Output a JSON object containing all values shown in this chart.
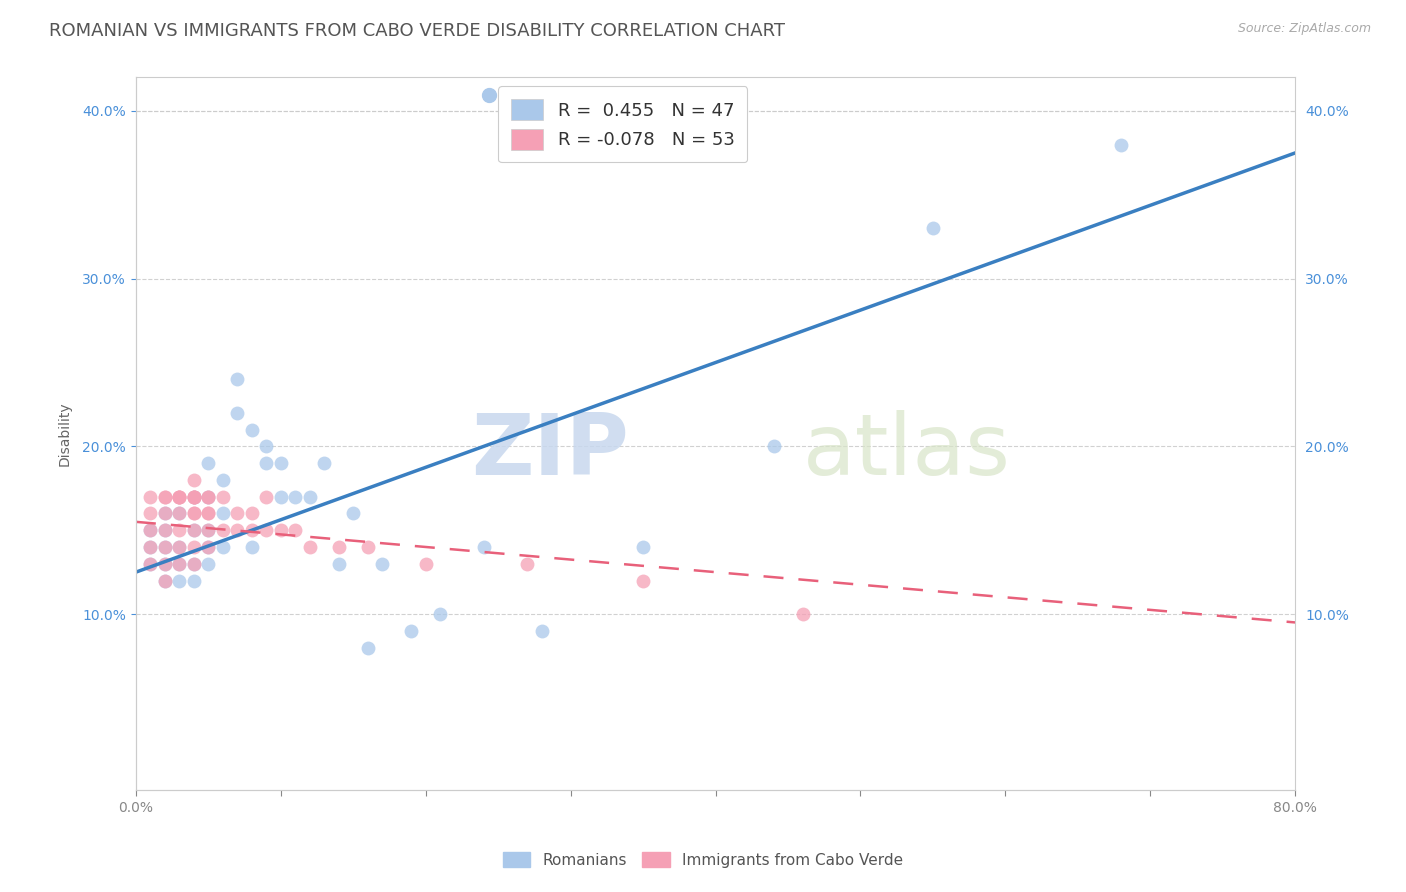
{
  "title": "ROMANIAN VS IMMIGRANTS FROM CABO VERDE DISABILITY CORRELATION CHART",
  "source_text": "Source: ZipAtlas.com",
  "ylabel": "Disability",
  "xlim": [
    0.0,
    0.8
  ],
  "ylim": [
    -0.005,
    0.42
  ],
  "x_ticks": [
    0.0,
    0.1,
    0.2,
    0.3,
    0.4,
    0.5,
    0.6,
    0.7,
    0.8
  ],
  "y_ticks": [
    0.1,
    0.2,
    0.3,
    0.4
  ],
  "y_tick_labels": [
    "10.0%",
    "20.0%",
    "30.0%",
    "40.0%"
  ],
  "legend_r_romanian": " 0.455",
  "legend_n_romanian": "47",
  "legend_r_caboverde": "-0.078",
  "legend_n_caboverde": "53",
  "romanian_color": "#aac8ea",
  "romanian_line_color": "#3a7fc1",
  "caboverde_color": "#f5a0b5",
  "caboverde_line_color": "#e8607a",
  "watermark_zip": "ZIP",
  "watermark_atlas": "atlas",
  "background_color": "#ffffff",
  "grid_color": "#cccccc",
  "romanian_x": [
    0.01,
    0.01,
    0.01,
    0.02,
    0.02,
    0.02,
    0.02,
    0.02,
    0.03,
    0.03,
    0.03,
    0.03,
    0.04,
    0.04,
    0.04,
    0.04,
    0.05,
    0.05,
    0.05,
    0.05,
    0.05,
    0.06,
    0.06,
    0.06,
    0.07,
    0.07,
    0.08,
    0.08,
    0.09,
    0.09,
    0.1,
    0.1,
    0.11,
    0.12,
    0.13,
    0.14,
    0.15,
    0.16,
    0.17,
    0.19,
    0.21,
    0.24,
    0.28,
    0.35,
    0.44,
    0.55,
    0.68
  ],
  "romanian_y": [
    0.13,
    0.14,
    0.15,
    0.12,
    0.13,
    0.14,
    0.15,
    0.16,
    0.12,
    0.13,
    0.14,
    0.16,
    0.12,
    0.13,
    0.15,
    0.17,
    0.13,
    0.14,
    0.15,
    0.17,
    0.19,
    0.14,
    0.16,
    0.18,
    0.22,
    0.24,
    0.14,
    0.21,
    0.19,
    0.2,
    0.17,
    0.19,
    0.17,
    0.17,
    0.19,
    0.13,
    0.16,
    0.08,
    0.13,
    0.09,
    0.1,
    0.14,
    0.09,
    0.14,
    0.2,
    0.33,
    0.38
  ],
  "caboverde_x": [
    0.01,
    0.01,
    0.01,
    0.01,
    0.01,
    0.02,
    0.02,
    0.02,
    0.02,
    0.02,
    0.02,
    0.02,
    0.03,
    0.03,
    0.03,
    0.03,
    0.03,
    0.03,
    0.03,
    0.03,
    0.04,
    0.04,
    0.04,
    0.04,
    0.04,
    0.04,
    0.04,
    0.04,
    0.04,
    0.04,
    0.05,
    0.05,
    0.05,
    0.05,
    0.05,
    0.05,
    0.06,
    0.06,
    0.07,
    0.07,
    0.08,
    0.08,
    0.09,
    0.09,
    0.1,
    0.11,
    0.12,
    0.14,
    0.16,
    0.2,
    0.27,
    0.35,
    0.46
  ],
  "caboverde_y": [
    0.13,
    0.14,
    0.15,
    0.16,
    0.17,
    0.12,
    0.13,
    0.14,
    0.15,
    0.16,
    0.17,
    0.17,
    0.13,
    0.14,
    0.15,
    0.16,
    0.17,
    0.17,
    0.17,
    0.17,
    0.13,
    0.14,
    0.15,
    0.16,
    0.16,
    0.17,
    0.17,
    0.17,
    0.17,
    0.18,
    0.14,
    0.15,
    0.16,
    0.16,
    0.17,
    0.17,
    0.15,
    0.17,
    0.15,
    0.16,
    0.15,
    0.16,
    0.15,
    0.17,
    0.15,
    0.15,
    0.14,
    0.14,
    0.14,
    0.13,
    0.13,
    0.12,
    0.1
  ],
  "title_fontsize": 13,
  "axis_label_fontsize": 10,
  "tick_fontsize": 10
}
